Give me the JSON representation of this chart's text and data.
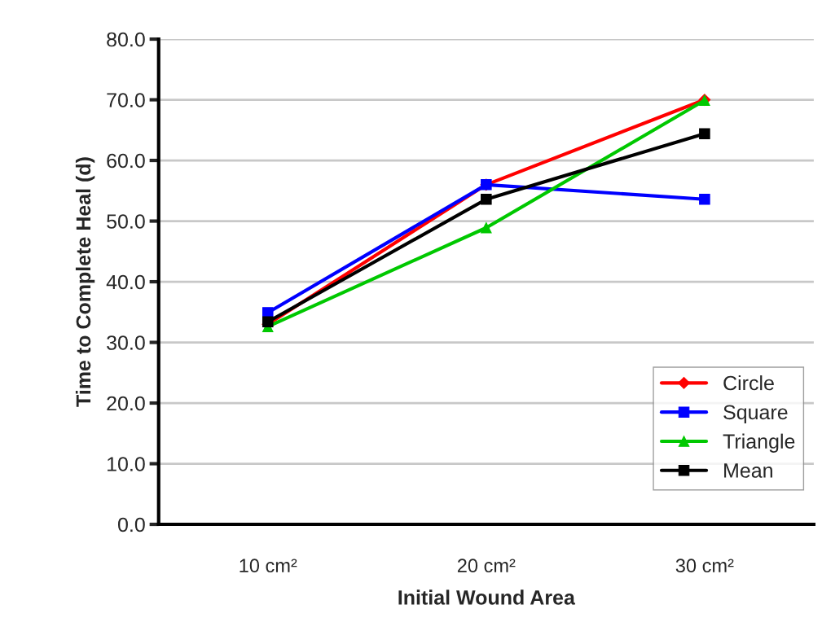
{
  "chart_data": {
    "type": "line",
    "xlabel": "Initial Wound Area",
    "ylabel": "Time to Complete Heal (d)",
    "categories": [
      "10 cm²",
      "20 cm²",
      "30 cm²"
    ],
    "series": [
      {
        "name": "Circle",
        "color": "#ff0000",
        "marker": "diamond",
        "values": [
          33.0,
          56.0,
          70.0
        ]
      },
      {
        "name": "Square",
        "color": "#0000ff",
        "marker": "square",
        "values": [
          34.9,
          56.0,
          53.6
        ]
      },
      {
        "name": "Triangle",
        "color": "#00c800",
        "marker": "triangle",
        "values": [
          32.6,
          48.9,
          69.9
        ]
      },
      {
        "name": "Mean",
        "color": "#000000",
        "marker": "square",
        "values": [
          33.4,
          53.6,
          64.4
        ]
      }
    ],
    "ylim": [
      0,
      80
    ],
    "yticks": [
      {
        "value": 0,
        "label": "0.0"
      },
      {
        "value": 10,
        "label": "10.0"
      },
      {
        "value": 20,
        "label": "20.0"
      },
      {
        "value": 30,
        "label": "30.0"
      },
      {
        "value": 40,
        "label": "40.0"
      },
      {
        "value": 50,
        "label": "50.0"
      },
      {
        "value": 60,
        "label": "60.0"
      },
      {
        "value": 70,
        "label": "70.0"
      },
      {
        "value": 80,
        "label": "80.0"
      }
    ],
    "grid": "y",
    "legend": "bottom right",
    "line_style": "solid"
  }
}
